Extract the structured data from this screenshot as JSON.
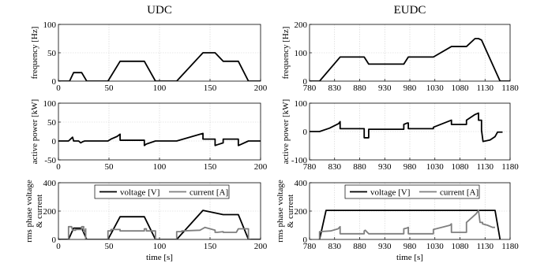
{
  "figure": {
    "columns": [
      "UDC",
      "EUDC"
    ]
  },
  "colors": {
    "voltage": "#000000",
    "current": "#7f7f7f",
    "grid": "#cfcfcf"
  },
  "chart_data": [
    {
      "id": "udc-frequency",
      "type": "line",
      "title": "UDC",
      "xlabel": "",
      "ylabel": "frequency [Hz]",
      "xlim": [
        0,
        200
      ],
      "ylim": [
        0,
        100
      ],
      "xticks": [
        0,
        50,
        100,
        150,
        200
      ],
      "yticks": [
        0,
        50,
        100
      ],
      "grid": true,
      "series": [
        {
          "name": "",
          "color": "#000000",
          "x": [
            0,
            11,
            15,
            23,
            28,
            49,
            61,
            85,
            96,
            117,
            143,
            155,
            163,
            178,
            188,
            200
          ],
          "y": [
            0,
            0,
            15,
            15,
            0,
            0,
            35,
            35,
            0,
            0,
            50,
            50,
            35,
            35,
            0,
            0
          ]
        }
      ]
    },
    {
      "id": "eudc-frequency",
      "type": "line",
      "title": "EUDC",
      "xlabel": "",
      "ylabel": "frequency [Hz]",
      "xlim": [
        780,
        1180
      ],
      "ylim": [
        0,
        200
      ],
      "xticks": [
        780,
        830,
        880,
        930,
        980,
        1030,
        1080,
        1130,
        1180
      ],
      "yticks": [
        0,
        100,
        200
      ],
      "grid": true,
      "series": [
        {
          "name": "",
          "color": "#000000",
          "x": [
            780,
            800,
            841,
            889,
            898,
            968,
            977,
            1027,
            1063,
            1093,
            1110,
            1117,
            1123,
            1160,
            1180
          ],
          "y": [
            0,
            0,
            85,
            85,
            60,
            60,
            85,
            85,
            122,
            122,
            150,
            150,
            145,
            0,
            0
          ]
        }
      ]
    },
    {
      "id": "udc-power",
      "type": "line",
      "title": "",
      "xlabel": "",
      "ylabel": "active power [kW]",
      "xlim": [
        0,
        200
      ],
      "ylim": [
        -50,
        100
      ],
      "xticks": [
        0,
        50,
        100,
        150,
        200
      ],
      "yticks": [
        -50,
        0,
        50,
        100
      ],
      "grid": true,
      "series": [
        {
          "name": "",
          "color": "#000000",
          "x": [
            0,
            10,
            14,
            15,
            20,
            22,
            24,
            26,
            28,
            49,
            52,
            58,
            61,
            61,
            85,
            85,
            87,
            96,
            117,
            143,
            143,
            155,
            155,
            157,
            163,
            163,
            178,
            178,
            188,
            200
          ],
          "y": [
            0,
            0,
            10,
            0,
            0,
            -5,
            -2,
            0,
            0,
            0,
            5,
            12,
            18,
            2,
            2,
            -12,
            -8,
            0,
            0,
            20,
            5,
            5,
            -12,
            -10,
            -5,
            5,
            5,
            -12,
            0,
            0
          ]
        }
      ]
    },
    {
      "id": "eudc-power",
      "type": "line",
      "title": "",
      "xlabel": "",
      "ylabel": "active power [kW]",
      "xlim": [
        780,
        1180
      ],
      "ylim": [
        -100,
        100
      ],
      "xticks": [
        780,
        830,
        880,
        930,
        980,
        1030,
        1080,
        1130,
        1180
      ],
      "yticks": [
        -100,
        0,
        100
      ],
      "grid": true,
      "series": [
        {
          "name": "",
          "color": "#000000",
          "x": [
            780,
            800,
            820,
            838,
            841,
            841,
            889,
            889,
            898,
            898,
            968,
            968,
            975,
            977,
            977,
            1027,
            1027,
            1063,
            1063,
            1093,
            1093,
            1110,
            1117,
            1117,
            1123,
            1123,
            1126,
            1140,
            1150,
            1155,
            1165
          ],
          "y": [
            0,
            0,
            12,
            28,
            35,
            10,
            10,
            -22,
            -22,
            8,
            8,
            25,
            30,
            30,
            10,
            10,
            15,
            40,
            25,
            25,
            40,
            60,
            65,
            40,
            40,
            5,
            -35,
            -30,
            -18,
            -2,
            -2
          ]
        }
      ]
    },
    {
      "id": "udc-rms",
      "type": "line",
      "title": "",
      "xlabel": "time [s]",
      "ylabel": "rms phase voltage & current",
      "xlim": [
        0,
        200
      ],
      "ylim": [
        0,
        400
      ],
      "xticks": [
        0,
        50,
        100,
        150,
        200
      ],
      "yticks": [
        0,
        200,
        400
      ],
      "grid": true,
      "legend": {
        "position": "top",
        "entries": [
          "voltage [V]",
          "current [A]"
        ]
      },
      "series": [
        {
          "name": "voltage [V]",
          "color": "#000000",
          "x": [
            0,
            10,
            15,
            23,
            28,
            49,
            61,
            85,
            96,
            117,
            143,
            163,
            178,
            188,
            200
          ],
          "y": [
            0,
            0,
            80,
            80,
            0,
            0,
            160,
            160,
            0,
            0,
            205,
            175,
            175,
            0,
            0
          ]
        },
        {
          "name": "current [A]",
          "color": "#7f7f7f",
          "x": [
            9,
            10,
            10,
            13,
            14,
            14,
            17,
            17,
            23,
            23,
            25,
            25,
            26,
            27,
            27,
            49,
            49,
            52,
            52,
            61,
            61,
            85,
            85,
            87,
            87,
            96,
            96,
            117,
            117,
            122,
            122,
            140,
            145,
            155,
            155,
            157,
            163,
            163,
            176,
            178,
            178,
            188,
            188,
            190
          ],
          "y": [
            0,
            0,
            90,
            90,
            65,
            65,
            65,
            70,
            70,
            90,
            90,
            55,
            55,
            75,
            0,
            0,
            60,
            60,
            70,
            70,
            60,
            60,
            75,
            75,
            60,
            60,
            0,
            0,
            55,
            55,
            60,
            65,
            85,
            65,
            50,
            50,
            55,
            50,
            50,
            75,
            75,
            75,
            0,
            0
          ]
        }
      ]
    },
    {
      "id": "eudc-rms",
      "type": "line",
      "title": "",
      "xlabel": "time [s]",
      "ylabel": "rms phase voltage & current",
      "xlim": [
        780,
        1180
      ],
      "ylim": [
        0,
        400
      ],
      "xticks": [
        780,
        830,
        880,
        930,
        980,
        1030,
        1080,
        1130,
        1180
      ],
      "yticks": [
        0,
        200,
        400
      ],
      "grid": true,
      "legend": {
        "position": "top",
        "entries": [
          "voltage [V]",
          "current [A]"
        ]
      },
      "series": [
        {
          "name": "voltage [V]",
          "color": "#000000",
          "x": [
            800,
            800,
            813,
            1150,
            1160
          ],
          "y": [
            0,
            0,
            205,
            205,
            0
          ]
        },
        {
          "name": "current [A]",
          "color": "#7f7f7f",
          "x": [
            800,
            800,
            822,
            837,
            841,
            841,
            889,
            889,
            891,
            898,
            898,
            968,
            968,
            974,
            977,
            977,
            1027,
            1027,
            1060,
            1063,
            1063,
            1093,
            1093,
            1112,
            1117,
            1117,
            1120,
            1125,
            1125,
            1135,
            1145,
            1150
          ],
          "y": [
            0,
            55,
            60,
            75,
            90,
            40,
            40,
            60,
            65,
            40,
            40,
            40,
            75,
            80,
            85,
            40,
            40,
            70,
            100,
            110,
            50,
            50,
            120,
            180,
            205,
            205,
            120,
            120,
            110,
            100,
            85,
            85
          ]
        }
      ]
    }
  ]
}
